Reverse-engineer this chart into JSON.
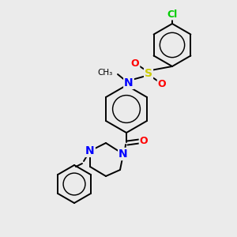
{
  "background_color": "#ebebeb",
  "bond_color": "#000000",
  "atom_colors": {
    "N": "#0000ff",
    "O": "#ff0000",
    "S": "#cccc00",
    "Cl": "#00cc00",
    "C": "#000000"
  },
  "figsize": [
    3.0,
    3.0
  ],
  "dpi": 100,
  "xlim": [
    0,
    300
  ],
  "ylim": [
    0,
    300
  ]
}
